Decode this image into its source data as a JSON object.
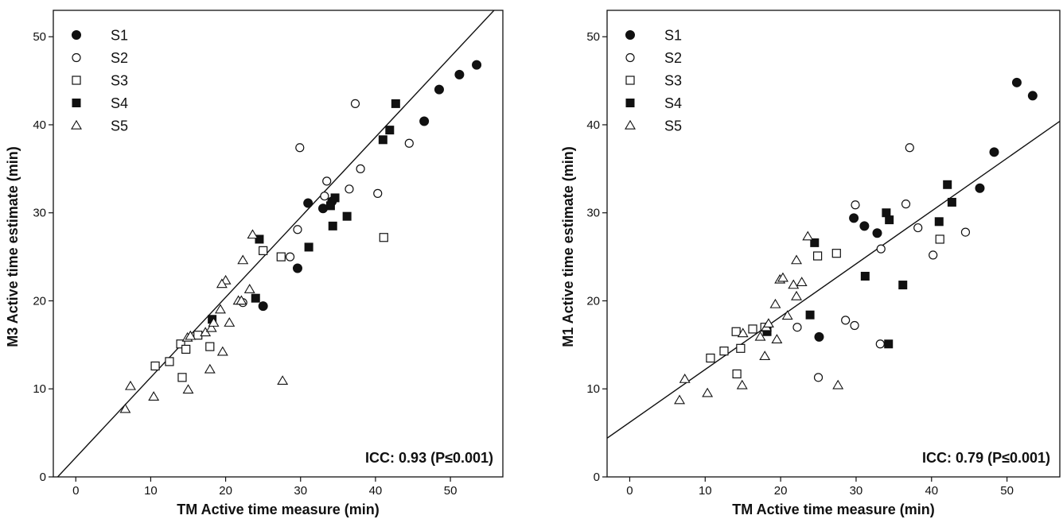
{
  "chart_data": [
    {
      "type": "scatter",
      "xlabel": "TM Active time measure (min)",
      "ylabel": "M3 Active time estimate (min)",
      "xlim": [
        -3,
        57
      ],
      "ylim": [
        0,
        53
      ],
      "xticks": [
        0,
        10,
        20,
        30,
        40,
        50
      ],
      "yticks": [
        0,
        10,
        20,
        30,
        40,
        50
      ],
      "annotation": "ICC: 0.93 (P≤0.001)",
      "legend_position": "top-left",
      "fit_line": {
        "slope": 0.91,
        "intercept": 2.2
      },
      "series": [
        {
          "name": "S1",
          "marker": "circle-filled",
          "x": [
            53.5,
            51.2,
            48.5,
            46.5,
            31.0,
            33.0,
            29.6,
            25.0,
            34.2
          ],
          "y": [
            46.8,
            45.7,
            44.0,
            40.4,
            31.1,
            30.5,
            23.7,
            19.4,
            31.3
          ]
        },
        {
          "name": "S2",
          "marker": "circle-open",
          "x": [
            37.3,
            29.9,
            33.5,
            38.0,
            44.5,
            36.5,
            40.3,
            33.2,
            29.6,
            28.6,
            22.3
          ],
          "y": [
            42.4,
            37.4,
            33.6,
            35.0,
            37.9,
            32.7,
            32.2,
            31.9,
            28.1,
            25.0,
            19.8
          ]
        },
        {
          "name": "S3",
          "marker": "square-open",
          "x": [
            41.1,
            27.4,
            25.0,
            16.3,
            14.0,
            14.7,
            17.9,
            10.6,
            12.5,
            14.2
          ],
          "y": [
            27.2,
            25.0,
            25.7,
            16.1,
            15.1,
            14.5,
            14.8,
            12.6,
            13.1,
            11.3
          ]
        },
        {
          "name": "S4",
          "marker": "square-filled",
          "x": [
            42.7,
            41.9,
            41.0,
            34.6,
            34.0,
            34.3,
            36.2,
            31.1,
            24.5,
            24.0,
            18.2
          ],
          "y": [
            42.4,
            39.4,
            38.3,
            31.7,
            30.8,
            28.5,
            29.6,
            26.1,
            27.0,
            20.3,
            17.9
          ]
        },
        {
          "name": "S5",
          "marker": "triangle-open",
          "x": [
            6.6,
            7.3,
            10.4,
            15.0,
            14.9,
            15.3,
            17.3,
            18.1,
            18.4,
            17.9,
            19.6,
            20.0,
            19.3,
            19.5,
            20.5,
            21.7,
            22.3,
            23.2,
            23.6,
            22.1,
            27.6
          ],
          "y": [
            7.7,
            10.3,
            9.1,
            9.9,
            15.8,
            16.0,
            16.4,
            16.9,
            17.5,
            12.2,
            14.2,
            22.3,
            19.0,
            21.9,
            17.5,
            20.0,
            24.6,
            21.3,
            27.5,
            20.0,
            10.9
          ]
        }
      ]
    },
    {
      "type": "scatter",
      "xlabel": "TM Active time measure (min)",
      "ylabel": "M1 Active time estimate (min)",
      "xlim": [
        -3,
        57
      ],
      "ylim": [
        0,
        53
      ],
      "xticks": [
        0,
        10,
        20,
        30,
        40,
        50
      ],
      "yticks": [
        0,
        10,
        20,
        30,
        40,
        50
      ],
      "annotation": "ICC: 0.79 (P≤0.001)",
      "legend_position": "top-left",
      "fit_line": {
        "slope": 0.6,
        "intercept": 6.2
      },
      "series": [
        {
          "name": "S1",
          "marker": "circle-filled",
          "x": [
            51.3,
            53.4,
            48.3,
            46.4,
            29.7,
            31.1,
            32.8,
            25.1
          ],
          "y": [
            44.8,
            43.3,
            36.9,
            32.8,
            29.4,
            28.5,
            27.7,
            15.9
          ]
        },
        {
          "name": "S2",
          "marker": "circle-open",
          "x": [
            37.1,
            29.9,
            36.6,
            33.3,
            38.2,
            44.5,
            40.2,
            22.2,
            28.6,
            29.8,
            33.2,
            25.0
          ],
          "y": [
            37.4,
            30.9,
            31.0,
            25.9,
            28.3,
            27.8,
            25.2,
            17.0,
            17.8,
            17.2,
            15.1,
            11.3
          ]
        },
        {
          "name": "S3",
          "marker": "square-open",
          "x": [
            41.1,
            27.4,
            24.9,
            16.3,
            14.1,
            14.7,
            17.9,
            10.7,
            12.5,
            14.2
          ],
          "y": [
            27.0,
            25.4,
            25.1,
            16.8,
            16.5,
            14.6,
            17.0,
            13.5,
            14.3,
            11.7
          ]
        },
        {
          "name": "S4",
          "marker": "square-filled",
          "x": [
            42.1,
            34.0,
            34.4,
            41.0,
            42.7,
            31.2,
            24.5,
            23.9,
            18.2,
            36.2,
            34.3
          ],
          "y": [
            33.2,
            30.0,
            29.2,
            29.0,
            31.2,
            22.8,
            26.6,
            18.4,
            16.5,
            21.8,
            15.1
          ]
        },
        {
          "name": "S5",
          "marker": "triangle-open",
          "x": [
            6.6,
            7.3,
            10.3,
            14.9,
            15.0,
            17.3,
            18.1,
            18.4,
            17.9,
            19.5,
            19.9,
            20.3,
            19.3,
            20.9,
            21.7,
            22.1,
            22.8,
            23.6,
            22.1,
            27.6
          ],
          "y": [
            8.7,
            11.1,
            9.5,
            10.4,
            16.3,
            15.9,
            17.0,
            17.4,
            13.7,
            15.6,
            22.4,
            22.6,
            19.6,
            18.3,
            21.8,
            20.5,
            22.1,
            27.3,
            24.6,
            10.4
          ]
        }
      ]
    }
  ]
}
